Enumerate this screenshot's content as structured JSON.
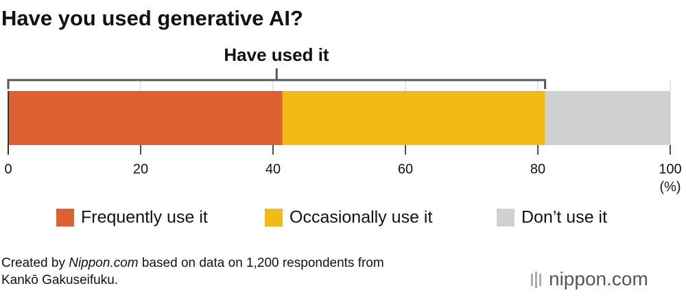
{
  "chart_data": {
    "type": "bar",
    "orientation": "horizontal",
    "stacked": true,
    "title": "Have you used generative AI?",
    "annotation": "Have used it",
    "x_unit": "(%)",
    "series": [
      {
        "name": "Frequently use it",
        "color": "#dd6133",
        "values": [
          41.4
        ]
      },
      {
        "name": "Occasionally use it",
        "color": "#f1ba17",
        "values": [
          39.7
        ]
      },
      {
        "name": "Don’t use it",
        "color": "#d0d0d0",
        "values": [
          18.9
        ]
      }
    ],
    "xlim": [
      0,
      100
    ],
    "xticks": [
      0,
      20,
      40,
      60,
      80,
      100
    ],
    "grid": true
  },
  "source": [
    "Created by ",
    "Nippon.com",
    " based on data on 1,200 respondents from",
    "Kankō Gakuseifuku."
  ],
  "logo": [
    "nippon",
    ".",
    "com"
  ]
}
